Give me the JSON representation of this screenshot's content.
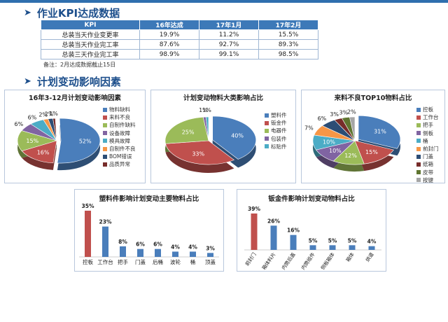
{
  "section1": {
    "title": "作业KPI达成数据"
  },
  "kpi_table": {
    "headers": [
      "KPI",
      "16年达成",
      "17年1月",
      "17年2月"
    ],
    "rows": [
      {
        "name": "总装当天作业变更率",
        "values": [
          "19.9%",
          "11.2%",
          "15.5%"
        ]
      },
      {
        "name": "总装当天作业完工率",
        "values": [
          "87.6%",
          "92.7%",
          "89.3%"
        ]
      },
      {
        "name": "总装三天作业完工率",
        "values": [
          "98.9%",
          "99.1%",
          "98.5%"
        ]
      }
    ],
    "note": "备注：2月达成数据截止15日"
  },
  "section2": {
    "title": "计划变动影响因素"
  },
  "chart_data": [
    {
      "type": "pie",
      "title": "16年3-12月计划变动影响因素",
      "categories": [
        "物料缺料",
        "来料不良",
        "自制件缺料",
        "设备故障",
        "模具故障",
        "自制件不良",
        "BOM错误",
        "品质异常"
      ],
      "values": [
        52,
        16,
        15,
        6,
        6,
        2,
        2,
        1
      ],
      "labels": [
        "52%",
        "16%",
        "15%",
        "6%",
        "6%",
        "2%",
        "2%",
        "1%"
      ],
      "colors": [
        "#4a7ebb",
        "#c0504d",
        "#9bbb59",
        "#8064a2",
        "#4bacc6",
        "#f79646",
        "#2c4d75",
        "#772c2a"
      ],
      "legend": "right"
    },
    {
      "type": "pie",
      "title": "计划变动物料大类影响占比",
      "categories": [
        "塑料件",
        "钣金件",
        "电器件",
        "包装件",
        "标贴件"
      ],
      "values": [
        40,
        33,
        25,
        1,
        1
      ],
      "labels": [
        "40%",
        "33%",
        "25%",
        "1%",
        "1%"
      ],
      "colors": [
        "#4a7ebb",
        "#c0504d",
        "#9bbb59",
        "#8064a2",
        "#4bacc6"
      ],
      "legend": "right"
    },
    {
      "type": "pie",
      "title": "来料不良TOP10物料占比",
      "categories": [
        "控板",
        "工作台",
        "把手",
        "侧板",
        "桶",
        "前封门",
        "门盖",
        "纸箱",
        "皮带",
        "按键"
      ],
      "values": [
        31,
        15,
        12,
        10,
        10,
        7,
        6,
        3,
        3,
        2
      ],
      "labels": [
        "31%",
        "15%",
        "12%",
        "10%",
        "10%",
        "7%",
        "6%",
        "3%",
        "3%",
        "2%"
      ],
      "colors": [
        "#4a7ebb",
        "#c0504d",
        "#9bbb59",
        "#8064a2",
        "#4bacc6",
        "#f79646",
        "#2c4d75",
        "#772c2a",
        "#5f7530",
        "#a5a5a5"
      ],
      "legend": "right"
    },
    {
      "type": "bar",
      "title": "塑料件影响计划变动主要物料占比",
      "categories": [
        "控板",
        "工作台",
        "把手",
        "门盖",
        "后桶",
        "波轮",
        "桶",
        "顶盖"
      ],
      "values": [
        35,
        23,
        8,
        6,
        6,
        4,
        4,
        3
      ],
      "labels": [
        "35%",
        "23%",
        "8%",
        "6%",
        "6%",
        "4%",
        "4%",
        "3%"
      ],
      "colors": [
        "#c0504d",
        "#4a7ebb",
        "#4a7ebb",
        "#4a7ebb",
        "#4a7ebb",
        "#4a7ebb",
        "#4a7ebb",
        "#4a7ebb"
      ]
    },
    {
      "type": "bar",
      "title": "钣金件影响计划变动物料占比",
      "categories": [
        "前封门",
        "箱体料片",
        "内筒后盖",
        "内筒组件",
        "侧板箱体",
        "箱体",
        "烘道"
      ],
      "values": [
        39,
        26,
        16,
        5,
        5,
        5,
        4
      ],
      "labels": [
        "39%",
        "26%",
        "16%",
        "5%",
        "5%",
        "5%",
        "4%"
      ],
      "colors": [
        "#c0504d",
        "#4a7ebb",
        "#4a7ebb",
        "#4a7ebb",
        "#4a7ebb",
        "#4a7ebb",
        "#4a7ebb"
      ]
    }
  ]
}
